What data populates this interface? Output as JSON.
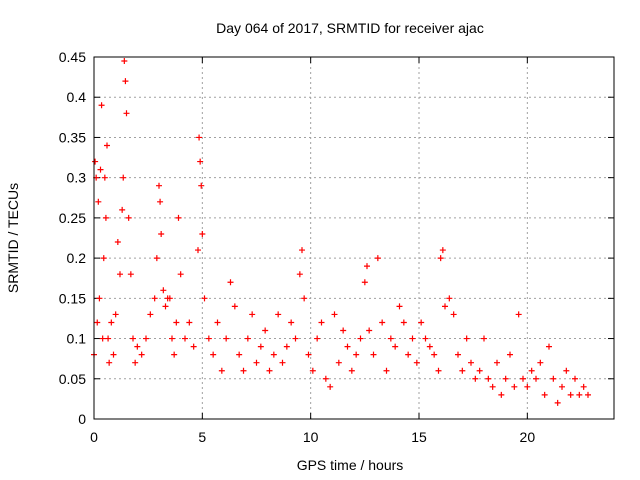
{
  "chart_data": {
    "type": "scatter",
    "title": "Day 064 of 2017, SRMTID for receiver ajac",
    "xlabel": "GPS time / hours",
    "ylabel": "SRMTID / TECUs",
    "xlim": [
      0,
      24
    ],
    "ylim": [
      0,
      0.45
    ],
    "x_ticks": [
      0,
      5,
      10,
      15,
      20
    ],
    "x_tick_labels": [
      "0",
      "5",
      "10",
      "15",
      "20"
    ],
    "y_ticks": [
      0,
      0.05,
      0.1,
      0.15,
      0.2,
      0.25,
      0.3,
      0.35,
      0.4,
      0.45
    ],
    "y_tick_labels": [
      "0",
      "0.05",
      "0.1",
      "0.15",
      "0.2",
      "0.25",
      "0.3",
      "0.35",
      "0.4",
      "0.45"
    ],
    "grid": true,
    "marker": "+",
    "series": [
      {
        "name": "SRMTID",
        "color": "#ff0000",
        "x": [
          0.0,
          0.05,
          0.1,
          0.15,
          0.2,
          0.25,
          0.3,
          0.35,
          0.4,
          0.45,
          0.5,
          0.55,
          0.6,
          0.65,
          0.7,
          0.8,
          0.9,
          1.0,
          1.1,
          1.2,
          1.3,
          1.35,
          1.4,
          1.45,
          1.5,
          1.6,
          1.7,
          1.8,
          1.9,
          2.0,
          2.2,
          2.4,
          2.6,
          2.8,
          2.9,
          3.0,
          3.05,
          3.1,
          3.2,
          3.3,
          3.4,
          3.5,
          3.6,
          3.7,
          3.8,
          3.9,
          4.0,
          4.2,
          4.4,
          4.6,
          4.8,
          4.85,
          4.9,
          4.95,
          5.0,
          5.1,
          5.3,
          5.5,
          5.7,
          5.9,
          6.1,
          6.3,
          6.5,
          6.7,
          6.9,
          7.1,
          7.3,
          7.5,
          7.7,
          7.9,
          8.1,
          8.3,
          8.5,
          8.7,
          8.9,
          9.1,
          9.3,
          9.5,
          9.6,
          9.7,
          9.9,
          10.1,
          10.3,
          10.5,
          10.7,
          10.9,
          11.1,
          11.3,
          11.5,
          11.7,
          11.9,
          12.1,
          12.3,
          12.5,
          12.6,
          12.7,
          12.9,
          13.1,
          13.3,
          13.5,
          13.7,
          13.9,
          14.1,
          14.3,
          14.5,
          14.7,
          14.9,
          15.1,
          15.3,
          15.5,
          15.7,
          15.9,
          16.0,
          16.1,
          16.2,
          16.4,
          16.6,
          16.8,
          17.0,
          17.2,
          17.4,
          17.6,
          17.8,
          18.0,
          18.2,
          18.4,
          18.6,
          18.8,
          19.0,
          19.2,
          19.4,
          19.6,
          19.8,
          20.0,
          20.2,
          20.4,
          20.6,
          20.8,
          21.0,
          21.2,
          21.4,
          21.6,
          21.8,
          22.0,
          22.2,
          22.4,
          22.6,
          22.8
        ],
        "y": [
          0.08,
          0.32,
          0.3,
          0.12,
          0.27,
          0.15,
          0.31,
          0.39,
          0.1,
          0.2,
          0.3,
          0.25,
          0.34,
          0.1,
          0.07,
          0.12,
          0.08,
          0.13,
          0.22,
          0.18,
          0.26,
          0.3,
          0.445,
          0.42,
          0.38,
          0.25,
          0.18,
          0.1,
          0.07,
          0.09,
          0.08,
          0.1,
          0.13,
          0.15,
          0.2,
          0.29,
          0.27,
          0.23,
          0.16,
          0.14,
          0.15,
          0.15,
          0.1,
          0.08,
          0.12,
          0.25,
          0.18,
          0.1,
          0.12,
          0.09,
          0.21,
          0.35,
          0.32,
          0.29,
          0.23,
          0.15,
          0.1,
          0.08,
          0.12,
          0.06,
          0.1,
          0.17,
          0.14,
          0.08,
          0.06,
          0.1,
          0.13,
          0.07,
          0.09,
          0.11,
          0.06,
          0.08,
          0.13,
          0.07,
          0.09,
          0.12,
          0.1,
          0.18,
          0.21,
          0.15,
          0.08,
          0.06,
          0.1,
          0.12,
          0.05,
          0.04,
          0.13,
          0.07,
          0.11,
          0.09,
          0.06,
          0.08,
          0.1,
          0.17,
          0.19,
          0.11,
          0.08,
          0.2,
          0.12,
          0.06,
          0.1,
          0.09,
          0.14,
          0.12,
          0.08,
          0.1,
          0.07,
          0.12,
          0.1,
          0.09,
          0.08,
          0.06,
          0.2,
          0.21,
          0.14,
          0.15,
          0.13,
          0.08,
          0.06,
          0.1,
          0.07,
          0.05,
          0.06,
          0.1,
          0.05,
          0.04,
          0.07,
          0.03,
          0.05,
          0.08,
          0.04,
          0.13,
          0.05,
          0.04,
          0.06,
          0.05,
          0.07,
          0.03,
          0.09,
          0.05,
          0.02,
          0.04,
          0.06,
          0.03,
          0.05,
          0.03,
          0.04,
          0.03
        ]
      }
    ]
  }
}
